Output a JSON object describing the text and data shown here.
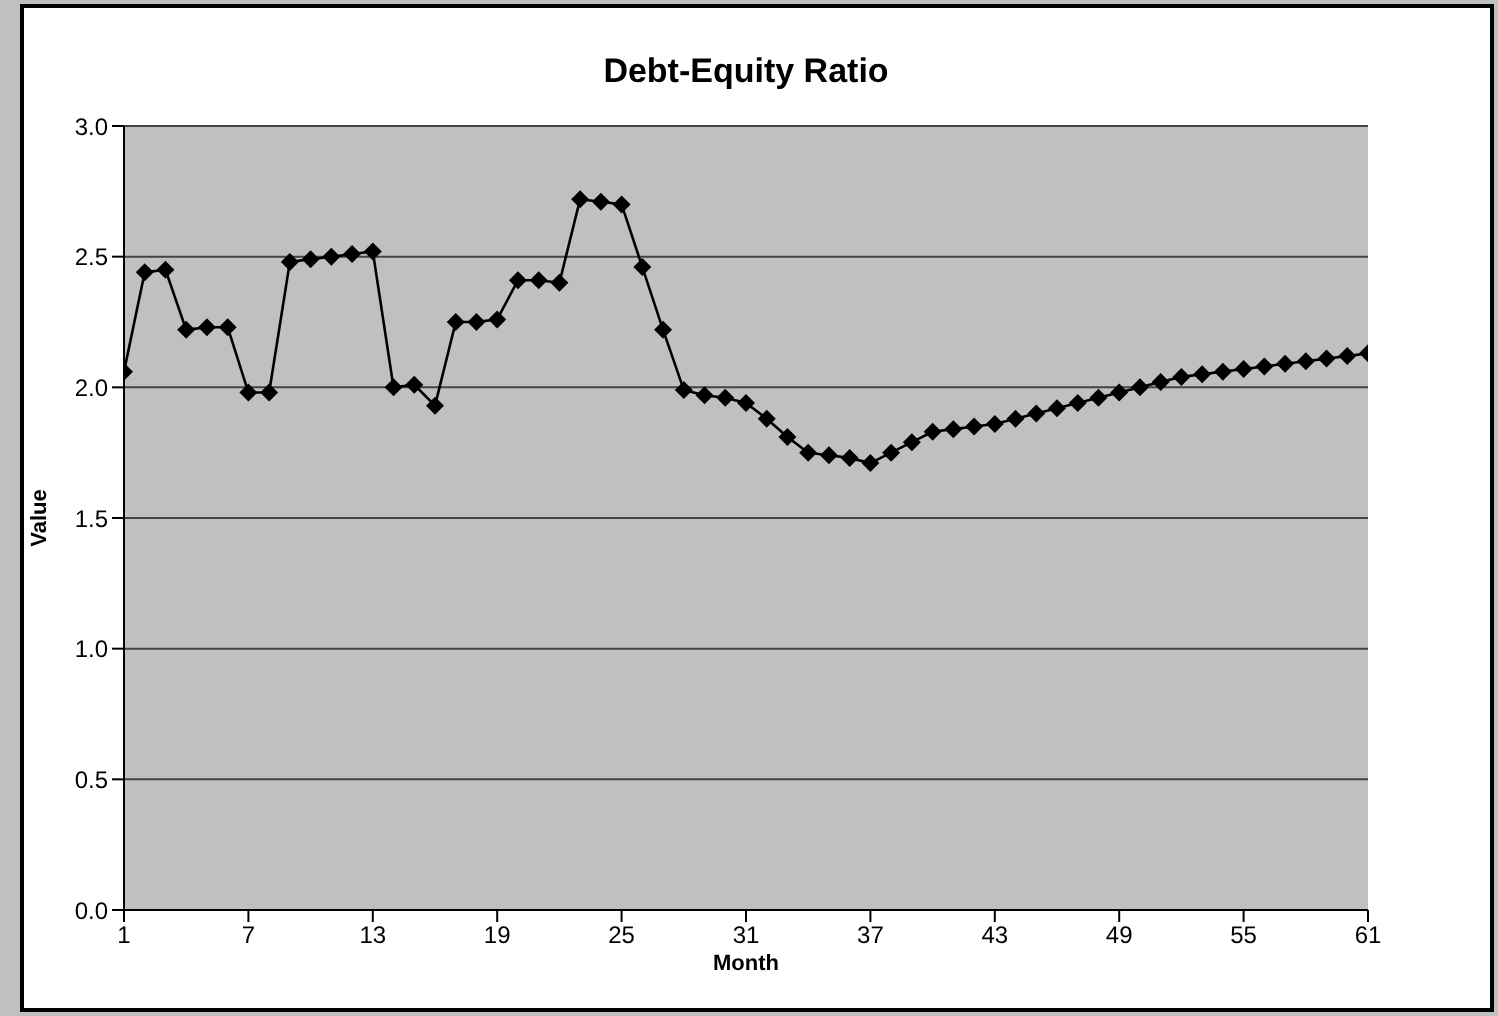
{
  "chart_data": {
    "type": "line",
    "title": "Debt-Equity Ratio",
    "xlabel": "Month",
    "ylabel": "Value",
    "x": [
      1,
      2,
      3,
      4,
      5,
      6,
      7,
      8,
      9,
      10,
      11,
      12,
      13,
      14,
      15,
      16,
      17,
      18,
      19,
      20,
      21,
      22,
      23,
      24,
      25,
      26,
      27,
      28,
      29,
      30,
      31,
      32,
      33,
      34,
      35,
      36,
      37,
      38,
      39,
      40,
      41,
      42,
      43,
      44,
      45,
      46,
      47,
      48,
      49,
      50,
      51,
      52,
      53,
      54,
      55,
      56,
      57,
      58,
      59,
      60,
      61
    ],
    "series": [
      {
        "color": "#000000",
        "values": [
          2.06,
          2.44,
          2.45,
          2.22,
          2.23,
          2.23,
          1.98,
          1.98,
          2.48,
          2.49,
          2.5,
          2.51,
          2.52,
          2.0,
          2.01,
          1.93,
          2.25,
          2.25,
          2.26,
          2.41,
          2.41,
          2.4,
          2.72,
          2.71,
          2.7,
          2.46,
          2.22,
          1.99,
          1.97,
          1.96,
          1.94,
          1.88,
          1.81,
          1.75,
          1.74,
          1.73,
          1.71,
          1.75,
          1.79,
          1.83,
          1.84,
          1.85,
          1.86,
          1.88,
          1.9,
          1.92,
          1.94,
          1.96,
          1.98,
          2.0,
          2.02,
          2.04,
          2.05,
          2.06,
          2.07,
          2.08,
          2.09,
          2.1,
          2.11,
          2.12,
          2.13
        ]
      }
    ],
    "xlim": [
      1,
      61
    ],
    "xticks": [
      1,
      7,
      13,
      19,
      25,
      31,
      37,
      43,
      49,
      55,
      61
    ],
    "ylim": [
      0,
      3
    ],
    "yticks": [
      {
        "value": 0,
        "label": "0.0"
      },
      {
        "value": 0.5,
        "label": "0.5"
      },
      {
        "value": 1,
        "label": "1.0"
      },
      {
        "value": 1.5,
        "label": "1.5"
      },
      {
        "value": 2,
        "label": "2.0"
      },
      {
        "value": 2.5,
        "label": "2.5"
      },
      {
        "value": 3,
        "label": "3.0"
      }
    ],
    "grid": "y",
    "legend": false,
    "marker": "diamond",
    "line_style": "solid"
  }
}
